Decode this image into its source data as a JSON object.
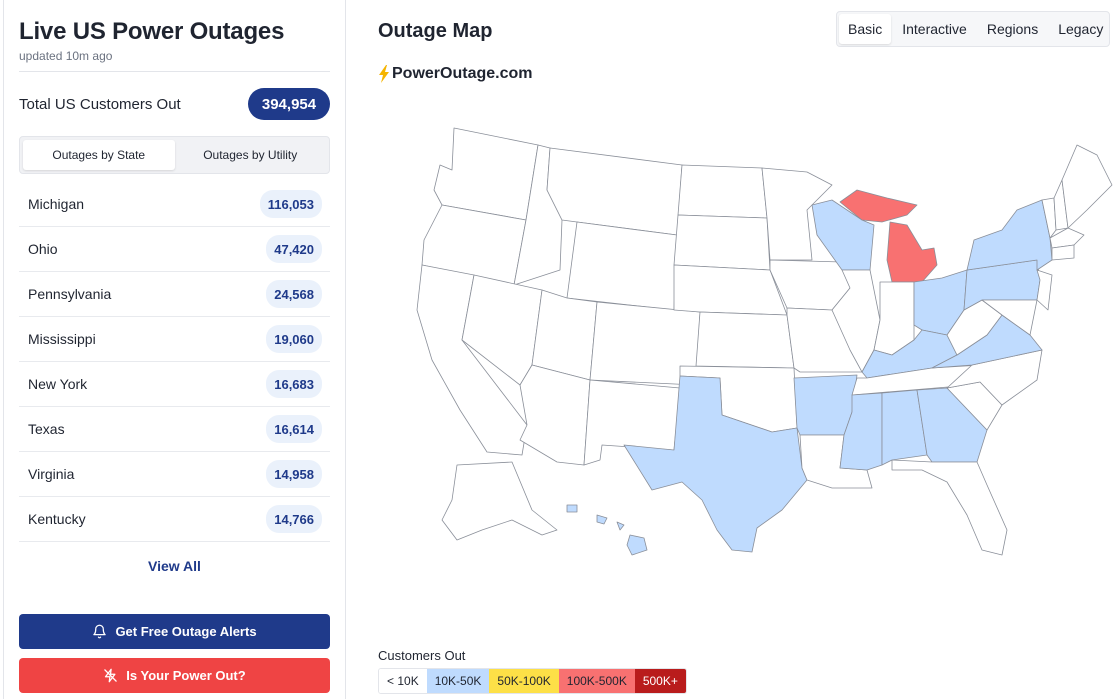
{
  "app": {
    "title": "Live US Power Outages",
    "updated": "updated 10m ago"
  },
  "total": {
    "label": "Total US Customers Out",
    "value": "394,954"
  },
  "tabs": [
    {
      "label": "Outages by State",
      "active": true
    },
    {
      "label": "Outages by Utility",
      "active": false
    }
  ],
  "states": [
    {
      "name": "Michigan",
      "count": "116,053"
    },
    {
      "name": "Ohio",
      "count": "47,420"
    },
    {
      "name": "Pennsylvania",
      "count": "24,568"
    },
    {
      "name": "Mississippi",
      "count": "19,060"
    },
    {
      "name": "New York",
      "count": "16,683"
    },
    {
      "name": "Texas",
      "count": "16,614"
    },
    {
      "name": "Virginia",
      "count": "14,958"
    },
    {
      "name": "Kentucky",
      "count": "14,766"
    }
  ],
  "view_all": "View All",
  "buttons": {
    "alerts": "Get Free Outage Alerts",
    "power_out": "Is Your Power Out?"
  },
  "map": {
    "title": "Outage Map",
    "views": [
      "Basic",
      "Interactive",
      "Regions",
      "Legacy"
    ],
    "active_view": "Basic",
    "brand": "PowerOutage.com",
    "legend_title": "Customers Out",
    "legend": [
      {
        "label": "< 10K",
        "color": "#ffffff",
        "text": "#1f2430"
      },
      {
        "label": "10K-50K",
        "color": "#bfdbfe",
        "text": "#1f2430"
      },
      {
        "label": "50K-100K",
        "color": "#fde047",
        "text": "#1f2430"
      },
      {
        "label": "100K-500K",
        "color": "#f87171",
        "text": "#1f2430"
      },
      {
        "label": "500K+",
        "color": "#b91c1c",
        "text": "#ffffff"
      }
    ]
  },
  "colors": {
    "accent": "#1f3a8a",
    "danger": "#ef4444",
    "tier_10k_50k": "#bfdbfe",
    "tier_100k_500k": "#f87171"
  }
}
